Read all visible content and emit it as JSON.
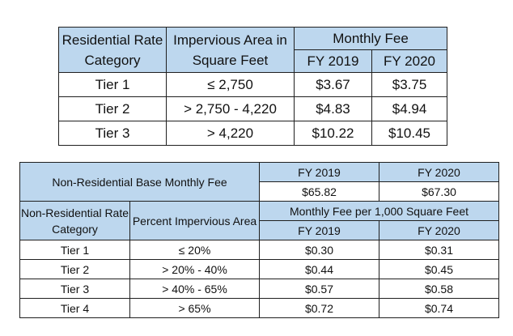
{
  "residential": {
    "header": {
      "category": "Residential Rate Category",
      "impervious": "Impervious Area in Square Feet",
      "monthly_fee": "Monthly Fee",
      "fy2019": "FY 2019",
      "fy2020": "FY 2020"
    },
    "rows": [
      {
        "tier": "Tier 1",
        "area": "≤ 2,750",
        "fy2019": "$3.67",
        "fy2020": "$3.75"
      },
      {
        "tier": "Tier 2",
        "area": "> 2,750 - 4,220",
        "fy2019": "$4.83",
        "fy2020": "$4.94"
      },
      {
        "tier": "Tier 3",
        "area": "> 4,220",
        "fy2019": "$10.22",
        "fy2020": "$10.45"
      }
    ]
  },
  "nonresidential": {
    "base_fee_label": "Non-Residential Base Monthly Fee",
    "base_fy2019_label": "FY 2019",
    "base_fy2020_label": "FY 2020",
    "base_fy2019_value": "$65.82",
    "base_fy2020_value": "$67.30",
    "header": {
      "category": "Non-Residential Rate Category",
      "percent": "Percent Impervious Area",
      "monthly_fee": "Monthly Fee per 1,000 Square Feet",
      "fy2019": "FY 2019",
      "fy2020": "FY 2020"
    },
    "rows": [
      {
        "tier": "Tier 1",
        "percent": "≤ 20%",
        "fy2019": "$0.30",
        "fy2020": "$0.31"
      },
      {
        "tier": "Tier 2",
        "percent": "> 20% - 40%",
        "fy2019": "$0.44",
        "fy2020": "$0.45"
      },
      {
        "tier": "Tier 3",
        "percent": "> 40% - 65%",
        "fy2019": "$0.57",
        "fy2020": "$0.58"
      },
      {
        "tier": "Tier 4",
        "percent": "> 65%",
        "fy2019": "$0.72",
        "fy2020": "$0.74"
      }
    ]
  }
}
